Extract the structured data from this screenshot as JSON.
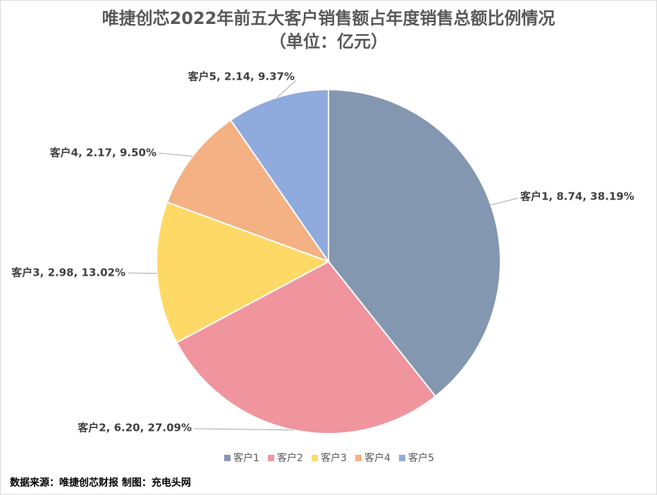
{
  "chart_data": {
    "type": "pie",
    "title": "唯捷创芯2022年前五大客户销售额占年度销售总额比例情况",
    "subtitle": "（单位：亿元）",
    "categories": [
      "客户1",
      "客户2",
      "客户3",
      "客户4",
      "客户5"
    ],
    "values": [
      8.74,
      6.2,
      2.98,
      2.17,
      2.14
    ],
    "value_labels": [
      "客户1, 8.74, 38.19%",
      "客户2, 6.20, 27.09%",
      "客户3, 2.98, 13.02%",
      "客户4, 2.17, 9.50%",
      "客户5, 2.14, 9.37%"
    ],
    "colors": [
      "#8497b0",
      "#f0959e",
      "#ffd966",
      "#f4b183",
      "#8faadc"
    ],
    "legend": "bottom",
    "source": "数据来源：唯捷创芯财报  制图：充电头网"
  }
}
